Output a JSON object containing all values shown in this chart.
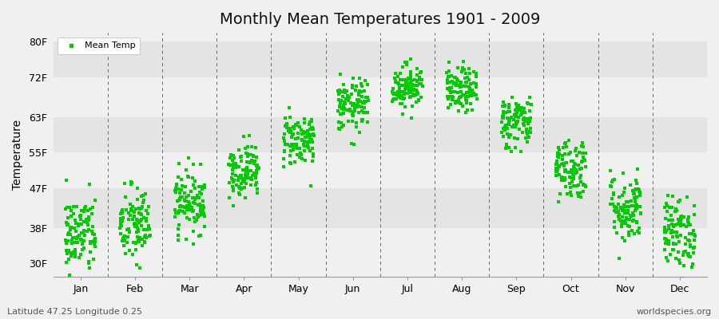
{
  "title": "Monthly Mean Temperatures 1901 - 2009",
  "ylabel": "Temperature",
  "xlabel_months": [
    "Jan",
    "Feb",
    "Mar",
    "Apr",
    "May",
    "Jun",
    "Jul",
    "Aug",
    "Sep",
    "Oct",
    "Nov",
    "Dec"
  ],
  "ytick_labels": [
    "30F",
    "38F",
    "47F",
    "55F",
    "63F",
    "72F",
    "80F"
  ],
  "ytick_values": [
    30,
    38,
    47,
    55,
    63,
    72,
    80
  ],
  "ylim": [
    27,
    82
  ],
  "xlim": [
    0.5,
    12.5
  ],
  "legend_label": "Mean Temp",
  "marker_color": "#00cc00",
  "marker": "s",
  "marker_size": 2.5,
  "footer_left": "Latitude 47.25 Longitude 0.25",
  "footer_right": "worldspecies.org",
  "background_color": "#f0f0f0",
  "band_color_light": "#f0f0f0",
  "band_color_dark": "#e4e4e4",
  "grid_color": "#666666",
  "monthly_mean_f": [
    36.5,
    38.5,
    44.0,
    51.0,
    58.0,
    65.5,
    70.0,
    69.0,
    62.0,
    51.5,
    42.5,
    37.0
  ],
  "monthly_std_f": [
    4.5,
    4.5,
    3.5,
    3.0,
    3.0,
    3.0,
    2.5,
    2.5,
    3.0,
    3.5,
    4.0,
    4.0
  ],
  "x_spread": 0.28,
  "n_years": 109,
  "seed": 42,
  "footer_fontsize": 8,
  "title_fontsize": 14,
  "tick_fontsize": 9,
  "ylabel_fontsize": 10
}
